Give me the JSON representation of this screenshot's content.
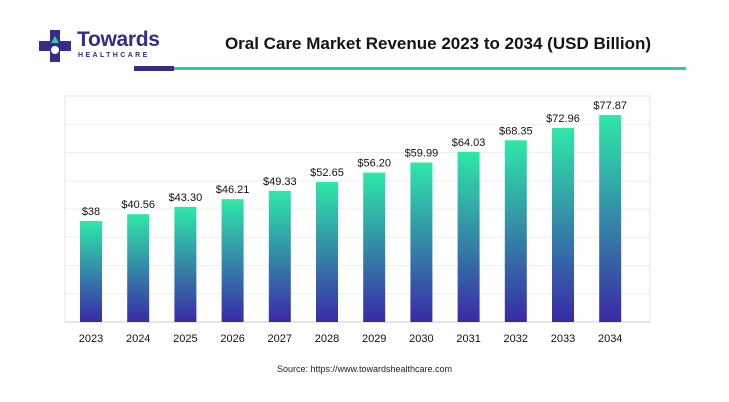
{
  "brand": {
    "name": "Towards",
    "sub": "HEALTHCARE",
    "colors": {
      "purple": "#3a2a8a",
      "teal": "#2ec9a5"
    },
    "icon": "plus-cross-logo-icon"
  },
  "source": "Source: https://www.towardshealthcare.com",
  "chart_data": {
    "type": "bar",
    "title": "Oral Care Market Revenue 2023 to 2034 (USD Billion)",
    "categories": [
      "2023",
      "2024",
      "2025",
      "2026",
      "2027",
      "2028",
      "2029",
      "2030",
      "2031",
      "2032",
      "2033",
      "2034"
    ],
    "values": [
      38,
      40.56,
      43.3,
      46.21,
      49.33,
      52.65,
      56.2,
      59.99,
      64.03,
      68.35,
      72.96,
      77.87
    ],
    "labels": [
      "$38",
      "$40.56",
      "$43.30",
      "$46.21",
      "$49.33",
      "$52.65",
      "$56.20",
      "$59.99",
      "$64.03",
      "$68.35",
      "$72.96",
      "$77.87"
    ],
    "xlabel": "",
    "ylabel": "",
    "ylim": [
      0,
      85
    ],
    "grid": true,
    "legend": "none",
    "bar_gradient": {
      "top": "#2ee8a8",
      "bottom": "#3a2aa8"
    }
  }
}
